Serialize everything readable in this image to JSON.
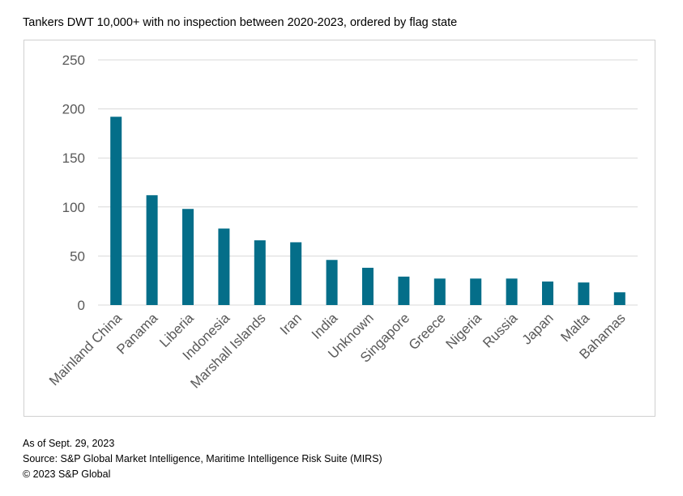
{
  "title": "Tankers DWT 10,000+ with no inspection between 2020-2023, ordered by flag state",
  "footer": {
    "as_of": "As of Sept. 29, 2023",
    "source": "Source: S&P Global Market Intelligence, Maritime Intelligence Risk Suite (MIRS)",
    "copyright": "© 2023 S&P Global"
  },
  "colors": {
    "bar": "#046E89",
    "grid": "#d9d9d9",
    "axis_text": "#595959"
  },
  "chart_data": {
    "type": "bar",
    "title": "Tankers DWT 10,000+ with no inspection between 2020-2023, ordered by flag state",
    "xlabel": "",
    "ylabel": "",
    "ylim": [
      0,
      250
    ],
    "yticks": [
      0,
      50,
      100,
      150,
      200,
      250
    ],
    "grid": true,
    "legend": "none",
    "categories": [
      "Mainland China",
      "Panama",
      "Liberia",
      "Indonesia",
      "Marshall Islands",
      "Iran",
      "India",
      "Unknown",
      "Singapore",
      "Greece",
      "Nigeria",
      "Russia",
      "Japan",
      "Malta",
      "Bahamas"
    ],
    "values": [
      192,
      112,
      98,
      78,
      66,
      64,
      46,
      38,
      29,
      27,
      27,
      27,
      24,
      23,
      13
    ]
  }
}
